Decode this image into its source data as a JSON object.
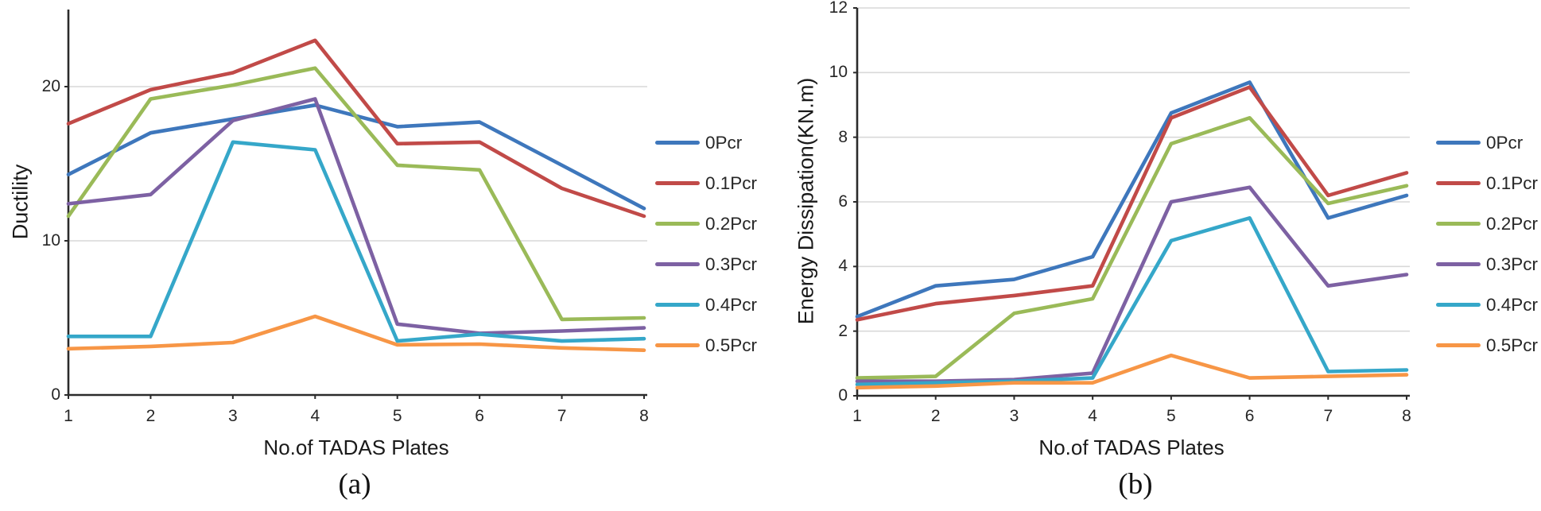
{
  "figure": {
    "background": "#ffffff",
    "axis_color": "#2b2b2b",
    "grid_color": "#d9d9d9",
    "text_color": "#262626"
  },
  "chart_data": [
    {
      "type": "line",
      "caption": "(a)",
      "xlabel": "No.of TADAS Plates",
      "ylabel": "Ductility",
      "x": [
        1,
        2,
        3,
        4,
        5,
        6,
        7,
        8
      ],
      "x_tick_labels": [
        "1",
        "2",
        "3",
        "4",
        "5",
        "6",
        "7",
        "8"
      ],
      "y_ticks": [
        0,
        10,
        20
      ],
      "ylim": [
        0,
        25
      ],
      "grid": true,
      "legend_position": "right",
      "series": [
        {
          "name": "0Pcr",
          "color": "#3E77BC",
          "values": [
            14.3,
            17.0,
            17.9,
            18.8,
            17.4,
            17.7,
            14.9,
            12.1
          ]
        },
        {
          "name": "0.1Pcr",
          "color": "#C14A48",
          "values": [
            17.6,
            19.8,
            20.9,
            23.0,
            16.3,
            16.4,
            13.4,
            11.6
          ]
        },
        {
          "name": "0.2Pcr",
          "color": "#9ABA58",
          "values": [
            11.6,
            19.2,
            20.1,
            21.2,
            14.9,
            14.6,
            4.9,
            5.0
          ]
        },
        {
          "name": "0.3Pcr",
          "color": "#7D61A3",
          "values": [
            12.4,
            13.0,
            17.8,
            19.2,
            4.6,
            4.0,
            4.15,
            4.35
          ]
        },
        {
          "name": "0.4Pcr",
          "color": "#35A7C9",
          "values": [
            3.8,
            3.8,
            16.4,
            15.9,
            3.5,
            3.95,
            3.5,
            3.65
          ]
        },
        {
          "name": "0.5Pcr",
          "color": "#F79646",
          "values": [
            3.0,
            3.15,
            3.4,
            5.1,
            3.25,
            3.3,
            3.05,
            2.9
          ]
        }
      ]
    },
    {
      "type": "line",
      "caption": "(b)",
      "xlabel": "No.of TADAS Plates",
      "ylabel": "Energy Dissipation(KN.m)",
      "x": [
        1,
        2,
        3,
        4,
        5,
        6,
        7,
        8
      ],
      "x_tick_labels": [
        "1",
        "2",
        "3",
        "4",
        "5",
        "6",
        "7",
        "8"
      ],
      "y_ticks": [
        0,
        2,
        4,
        6,
        8,
        10,
        12
      ],
      "ylim": [
        0,
        12
      ],
      "grid": true,
      "legend_position": "right",
      "series": [
        {
          "name": "0Pcr",
          "color": "#3E77BC",
          "values": [
            2.45,
            3.4,
            3.6,
            4.3,
            8.75,
            9.7,
            5.5,
            6.2
          ]
        },
        {
          "name": "0.1Pcr",
          "color": "#C14A48",
          "values": [
            2.35,
            2.85,
            3.1,
            3.4,
            8.6,
            9.55,
            6.2,
            6.9
          ]
        },
        {
          "name": "0.2Pcr",
          "color": "#9ABA58",
          "values": [
            0.55,
            0.6,
            2.55,
            3.0,
            7.8,
            8.6,
            5.95,
            6.5
          ]
        },
        {
          "name": "0.3Pcr",
          "color": "#7D61A3",
          "values": [
            0.45,
            0.45,
            0.5,
            0.7,
            6.0,
            6.45,
            3.4,
            3.75
          ]
        },
        {
          "name": "0.4Pcr",
          "color": "#35A7C9",
          "values": [
            0.35,
            0.4,
            0.45,
            0.55,
            4.8,
            5.5,
            0.75,
            0.8
          ]
        },
        {
          "name": "0.5Pcr",
          "color": "#F79646",
          "values": [
            0.25,
            0.3,
            0.4,
            0.4,
            1.25,
            0.55,
            0.6,
            0.65
          ]
        }
      ]
    }
  ]
}
